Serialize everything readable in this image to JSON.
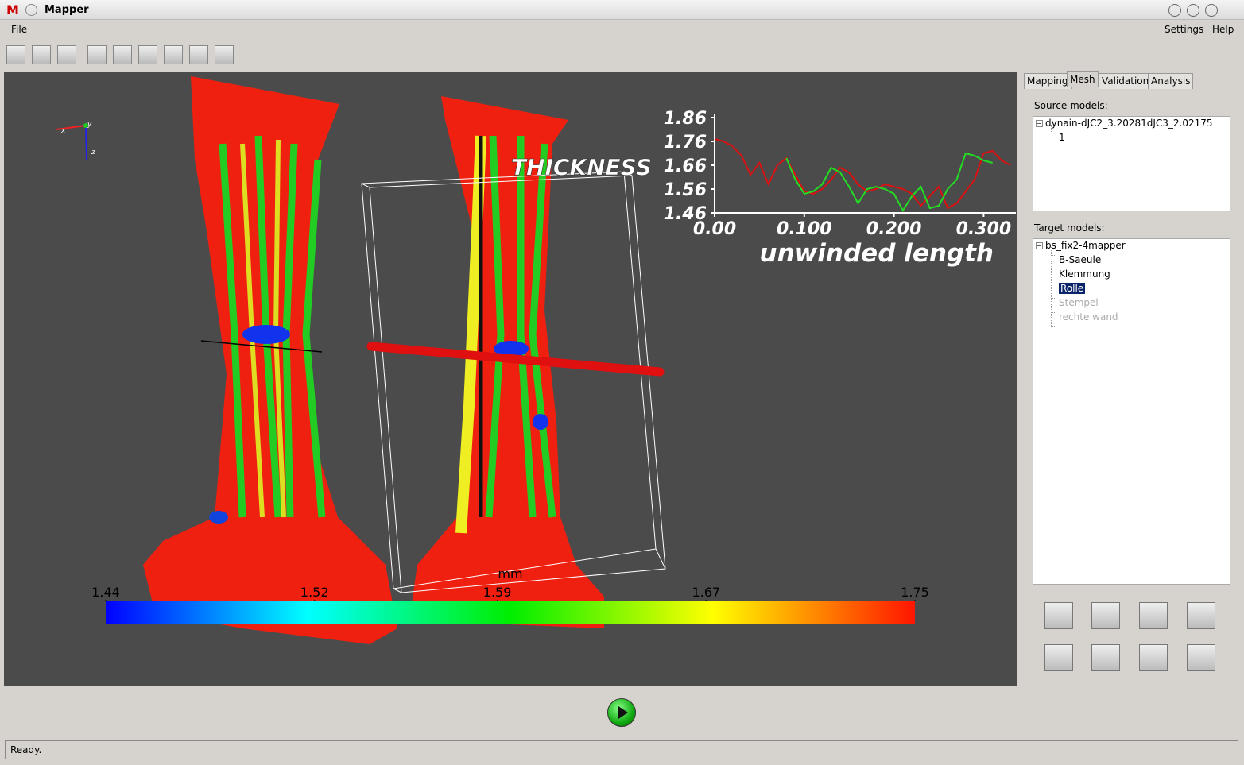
{
  "window": {
    "title": "Mapper",
    "menu": [
      "File",
      "Settings",
      "Help"
    ]
  },
  "chart_data": {
    "type": "line",
    "title": "THICKNESS",
    "x_label": "unwinded length",
    "x": [
      0,
      0.01,
      0.02,
      0.03,
      0.04,
      0.05,
      0.06,
      0.07,
      0.08,
      0.09,
      0.1,
      0.11,
      0.12,
      0.13,
      0.14,
      0.15,
      0.16,
      0.17,
      0.18,
      0.19,
      0.2,
      0.21,
      0.22,
      0.23,
      0.24,
      0.25,
      0.26,
      0.27,
      0.28,
      0.29,
      0.3,
      0.31,
      0.32,
      0.33
    ],
    "series": [
      {
        "color": "#dd1111",
        "values": [
          1.77,
          1.76,
          1.74,
          1.7,
          1.62,
          1.67,
          1.58,
          1.66,
          1.69,
          1.62,
          1.55,
          1.54,
          1.56,
          1.6,
          1.65,
          1.63,
          1.58,
          1.55,
          1.56,
          1.58,
          1.57,
          1.56,
          1.54,
          1.49,
          1.53,
          1.57,
          1.48,
          1.5,
          1.55,
          1.6,
          1.71,
          1.72,
          1.68,
          1.66
        ]
      },
      {
        "color": "#22dd22",
        "values": [
          null,
          null,
          null,
          null,
          null,
          null,
          null,
          null,
          1.69,
          1.6,
          1.54,
          1.55,
          1.58,
          1.65,
          1.63,
          1.57,
          1.5,
          1.56,
          1.57,
          1.56,
          1.54,
          1.47,
          1.53,
          1.57,
          1.48,
          1.49,
          1.56,
          1.6,
          1.71,
          1.7,
          1.68,
          1.67,
          null,
          null
        ]
      }
    ],
    "xlim": [
      0,
      0.336
    ],
    "ylim": [
      1.46,
      1.86
    ],
    "xticks": [
      {
        "value": 0,
        "label": "0.00"
      },
      {
        "value": 0.1,
        "label": "0.100"
      },
      {
        "value": 0.2,
        "label": "0.200"
      },
      {
        "value": 0.3,
        "label": "0.300"
      }
    ],
    "yticks": [
      1.46,
      1.56,
      1.66,
      1.76,
      1.86
    ]
  },
  "viewport": {
    "axes": [
      "x",
      "y",
      "z"
    ],
    "colorbar": {
      "unit": "mm",
      "range": [
        1.44,
        1.75
      ],
      "ticks": [
        1.44,
        1.52,
        1.59,
        1.67,
        1.75
      ]
    }
  },
  "panel": {
    "tabs": [
      "Mapping",
      "Mesh",
      "Validation",
      "Analysis"
    ],
    "source_label": "Source models:",
    "source_tree": {
      "root": "dynain-dJC2_3.20281dJC3_2.02175",
      "children": [
        "1"
      ]
    },
    "target_label": "Target models:",
    "target_tree": {
      "root": "bs_fix2-4mapper",
      "children": [
        "B-Saeule",
        "Klemmung",
        "Rolle",
        "Stempel",
        "rechte wand"
      ]
    }
  },
  "status": "Ready."
}
